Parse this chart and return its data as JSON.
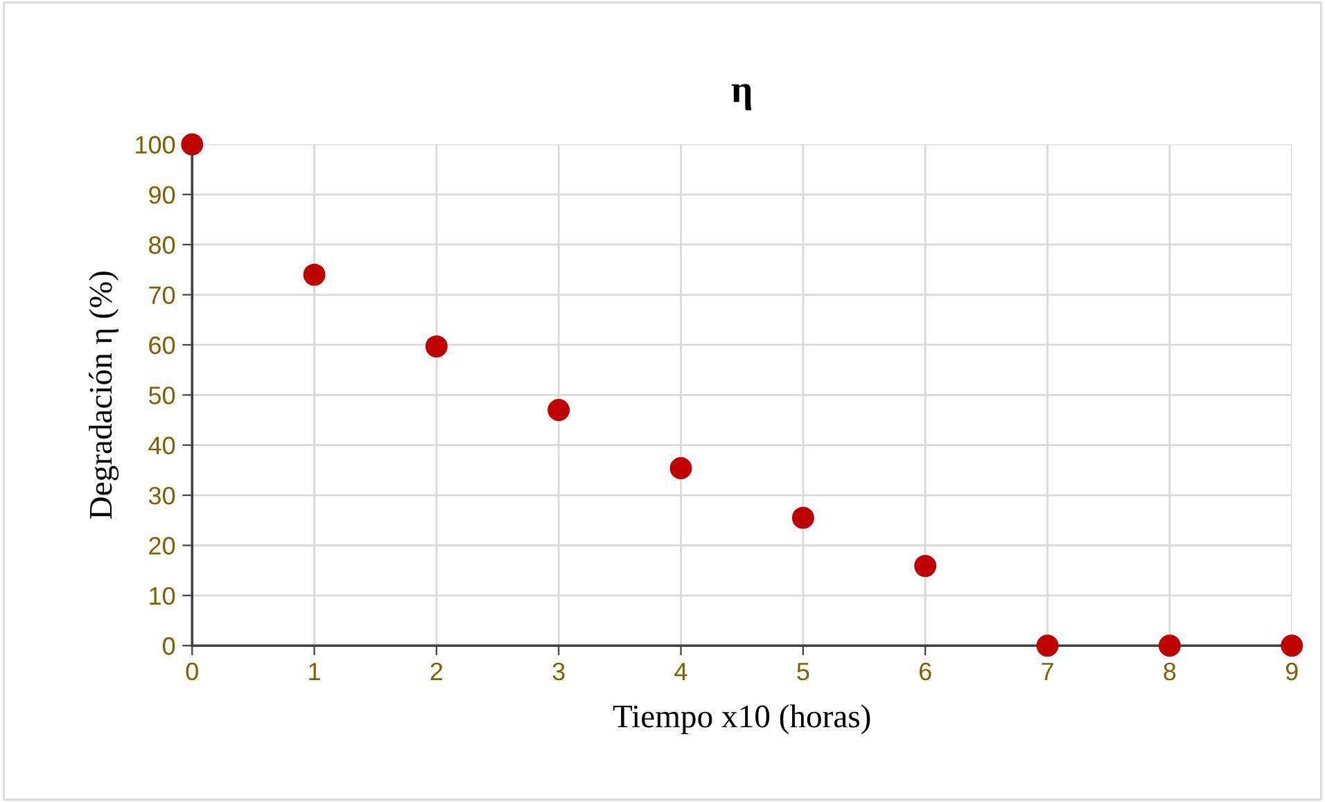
{
  "chart_data": {
    "type": "scatter",
    "title": "η",
    "xlabel": "Tiempo x10 (horas)",
    "ylabel": "Degradación η (%)",
    "x": [
      0,
      1,
      2,
      3,
      4,
      5,
      6,
      7,
      8,
      9
    ],
    "series": [
      {
        "color": "#c00000",
        "values": [
          100,
          74,
          59.7,
          47,
          35.4,
          25.5,
          15.9,
          0,
          0,
          0
        ]
      }
    ],
    "xlim": [
      0,
      9
    ],
    "ylim": [
      0,
      100
    ],
    "xticks": [
      0,
      1,
      2,
      3,
      4,
      5,
      6,
      7,
      8,
      9
    ],
    "yticks": [
      0,
      10,
      20,
      30,
      40,
      50,
      60,
      70,
      80,
      90,
      100
    ],
    "grid": true,
    "marker": "circle",
    "legend": false
  }
}
